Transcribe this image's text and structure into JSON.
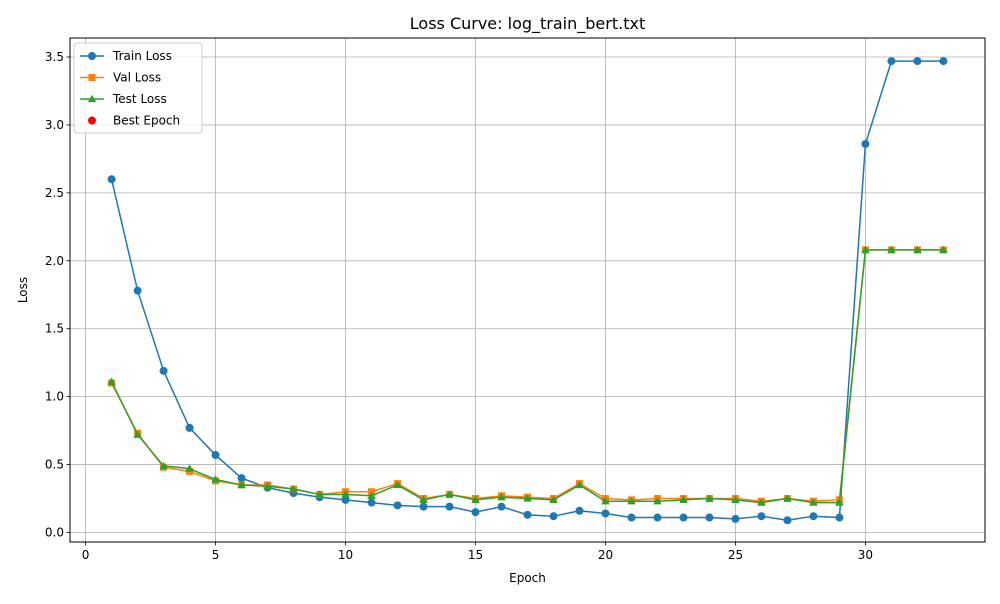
{
  "chart_data": {
    "type": "line",
    "title": "Loss Curve: log_train_bert.txt",
    "xlabel": "Epoch",
    "ylabel": "Loss",
    "xlim": [
      -0.6,
      34.6
    ],
    "ylim": [
      -0.07,
      3.64
    ],
    "x_ticks": [
      0,
      5,
      10,
      15,
      20,
      25,
      30
    ],
    "x_tick_labels": [
      "0",
      "5",
      "10",
      "15",
      "20",
      "25",
      "30"
    ],
    "y_ticks": [
      0.0,
      0.5,
      1.0,
      1.5,
      2.0,
      2.5,
      3.0,
      3.5
    ],
    "y_tick_labels": [
      "0.0",
      "0.5",
      "1.0",
      "1.5",
      "2.0",
      "2.5",
      "3.0",
      "3.5"
    ],
    "grid": true,
    "legend_position": "upper-left",
    "x": [
      1,
      2,
      3,
      4,
      5,
      6,
      7,
      8,
      9,
      10,
      11,
      12,
      13,
      14,
      15,
      16,
      17,
      18,
      19,
      20,
      21,
      22,
      23,
      24,
      25,
      26,
      27,
      28,
      29,
      30,
      31,
      32,
      33
    ],
    "series": [
      {
        "name": "Train Loss",
        "color": "#1f77b4",
        "marker": "circle",
        "values": [
          2.6,
          1.78,
          1.19,
          0.77,
          0.57,
          0.4,
          0.33,
          0.29,
          0.26,
          0.24,
          0.22,
          0.2,
          0.19,
          0.19,
          0.15,
          0.19,
          0.13,
          0.12,
          0.16,
          0.14,
          0.11,
          0.11,
          0.11,
          0.11,
          0.1,
          0.12,
          0.09,
          0.12,
          0.11,
          2.86,
          3.47,
          3.47,
          3.47
        ]
      },
      {
        "name": "Val Loss",
        "color": "#ff7f0e",
        "marker": "square",
        "values": [
          1.1,
          0.73,
          0.48,
          0.45,
          0.38,
          0.35,
          0.35,
          0.32,
          0.28,
          0.3,
          0.3,
          0.36,
          0.25,
          0.28,
          0.25,
          0.27,
          0.26,
          0.25,
          0.36,
          0.25,
          0.24,
          0.25,
          0.25,
          0.25,
          0.25,
          0.23,
          0.25,
          0.23,
          0.24,
          2.08,
          2.08,
          2.08,
          2.08
        ]
      },
      {
        "name": "Test Loss",
        "color": "#2ca02c",
        "marker": "triangle",
        "values": [
          1.11,
          0.72,
          0.49,
          0.47,
          0.39,
          0.35,
          0.34,
          0.32,
          0.28,
          0.28,
          0.27,
          0.35,
          0.24,
          0.28,
          0.24,
          0.26,
          0.25,
          0.24,
          0.35,
          0.23,
          0.23,
          0.23,
          0.24,
          0.25,
          0.24,
          0.22,
          0.25,
          0.22,
          0.22,
          2.08,
          2.08,
          2.08,
          2.08
        ]
      }
    ],
    "best_epoch": {
      "name": "Best Epoch",
      "color": "#ff0000",
      "marker": "circle"
    },
    "legend": [
      "Train Loss",
      "Val Loss",
      "Test Loss",
      "Best Epoch"
    ]
  }
}
